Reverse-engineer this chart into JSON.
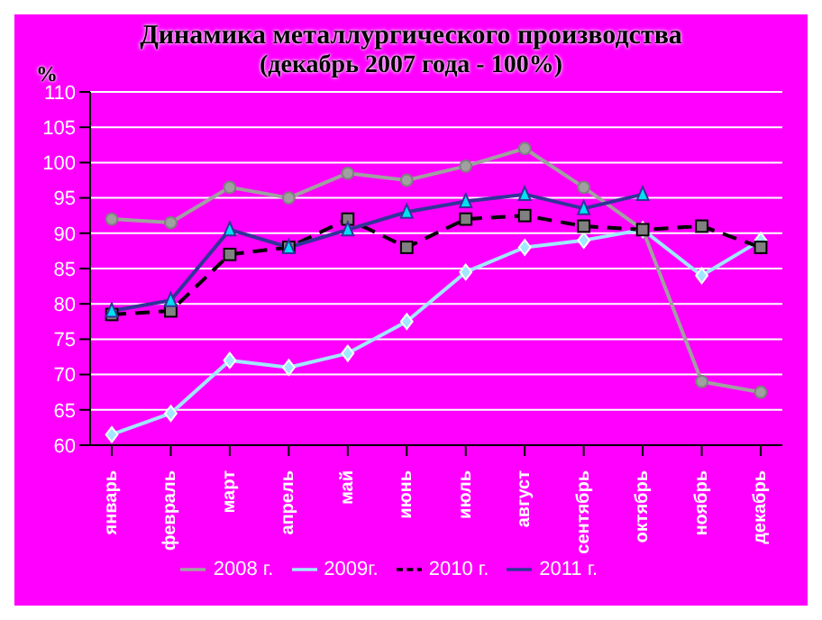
{
  "chart_data": {
    "type": "line",
    "title": "Динамика металлургического производства",
    "subtitle": "(декабрь 2007 года - 100%)",
    "ylabel": "%",
    "categories": [
      "январь",
      "февраль",
      "март",
      "апрель",
      "май",
      "июнь",
      "июль",
      "август",
      "сентябрь",
      "октябрь",
      "ноябрь",
      "декабрь"
    ],
    "series": [
      {
        "name": "2008 г.",
        "color": "#a0a0a0",
        "marker": "circle",
        "line_style": "solid",
        "values": [
          92,
          91.5,
          96.5,
          95,
          98.5,
          97.5,
          99.5,
          102,
          96.5,
          90.5,
          69,
          67.5
        ]
      },
      {
        "name": "2009г.",
        "color": "#a0e8ff",
        "marker": "diamond",
        "line_style": "solid",
        "values": [
          61.5,
          64.5,
          72,
          71,
          73,
          77.5,
          84.5,
          88,
          89,
          90.5,
          84,
          89
        ]
      },
      {
        "name": "2010 г.",
        "color": "#000000",
        "marker": "square",
        "line_style": "dashed",
        "values": [
          78.5,
          79,
          87,
          88,
          92,
          88,
          92,
          92.5,
          91,
          90.5,
          91,
          88
        ]
      },
      {
        "name": "2011 г.",
        "color": "#333399",
        "marker": "triangle",
        "line_style": "solid",
        "values": [
          79,
          80.5,
          90.5,
          88,
          90.5,
          93,
          94.5,
          95.5,
          93.5,
          95.5,
          null,
          null
        ]
      }
    ],
    "ylim": [
      60,
      110
    ],
    "yticks": [
      60,
      65,
      70,
      75,
      80,
      85,
      90,
      95,
      100,
      105,
      110
    ],
    "grid": "y",
    "legend": "bottom"
  }
}
